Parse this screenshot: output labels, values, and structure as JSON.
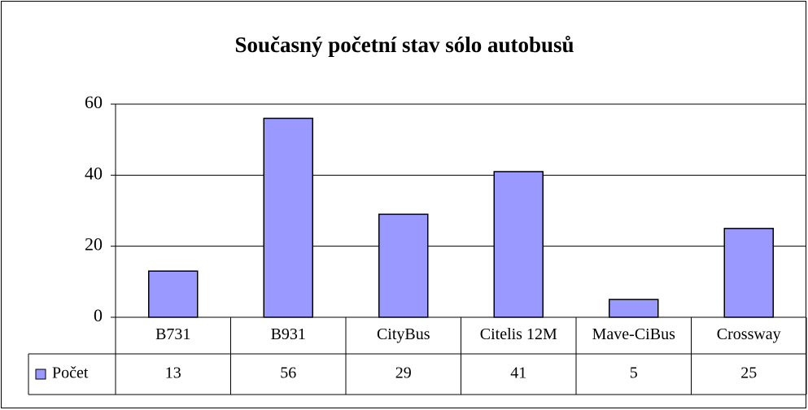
{
  "chart_data": {
    "type": "bar",
    "title": "Současný početní stav sólo autobusů",
    "categories": [
      "B731",
      "B931",
      "CityBus",
      "Citelis 12M",
      "Mave-CiBus",
      "Crossway"
    ],
    "series": [
      {
        "name": "Počet",
        "color": "#9999ff",
        "values": [
          13,
          56,
          29,
          41,
          5,
          25
        ]
      }
    ],
    "ylim": [
      0,
      60
    ],
    "yticks": [
      0,
      20,
      40,
      60
    ],
    "grid": true,
    "legend": "data-table"
  }
}
